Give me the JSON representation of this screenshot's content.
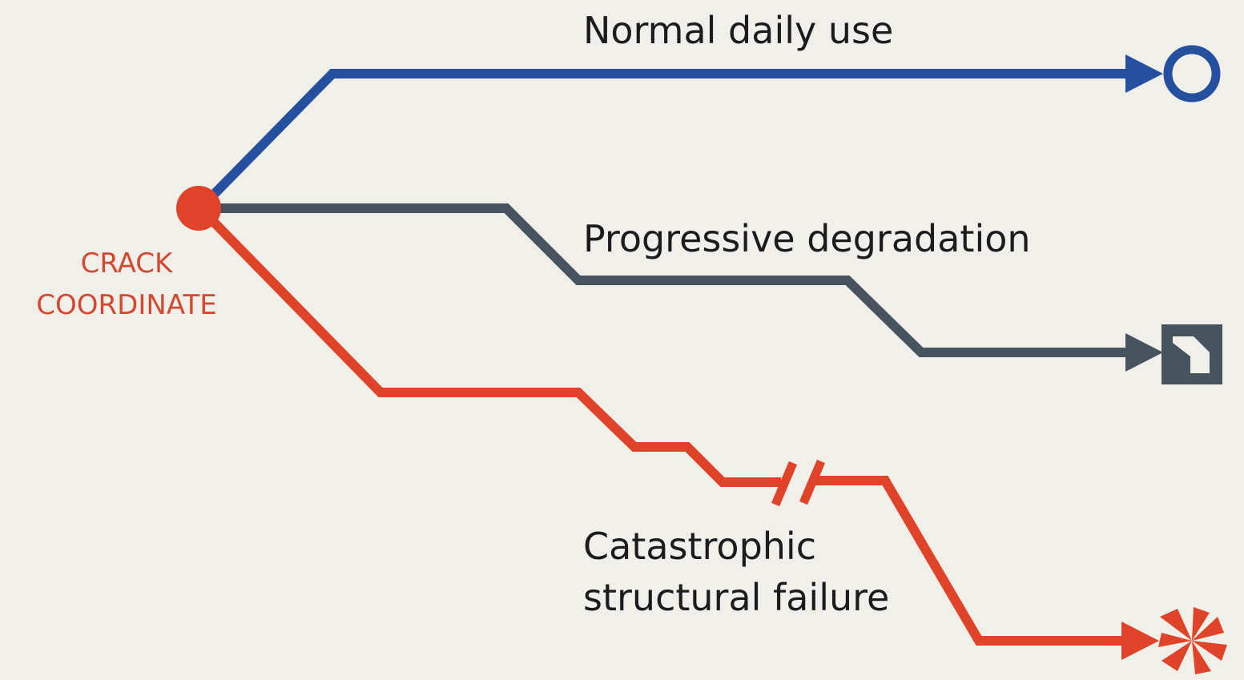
{
  "origin": {
    "label_lines": [
      "CRACK",
      "COORDINATE"
    ]
  },
  "paths": [
    {
      "label_lines": [
        "Normal daily use"
      ]
    },
    {
      "label_lines": [
        "Progressive degradation"
      ]
    },
    {
      "label_lines": [
        "Catastrophic",
        "structural failure"
      ]
    }
  ]
}
